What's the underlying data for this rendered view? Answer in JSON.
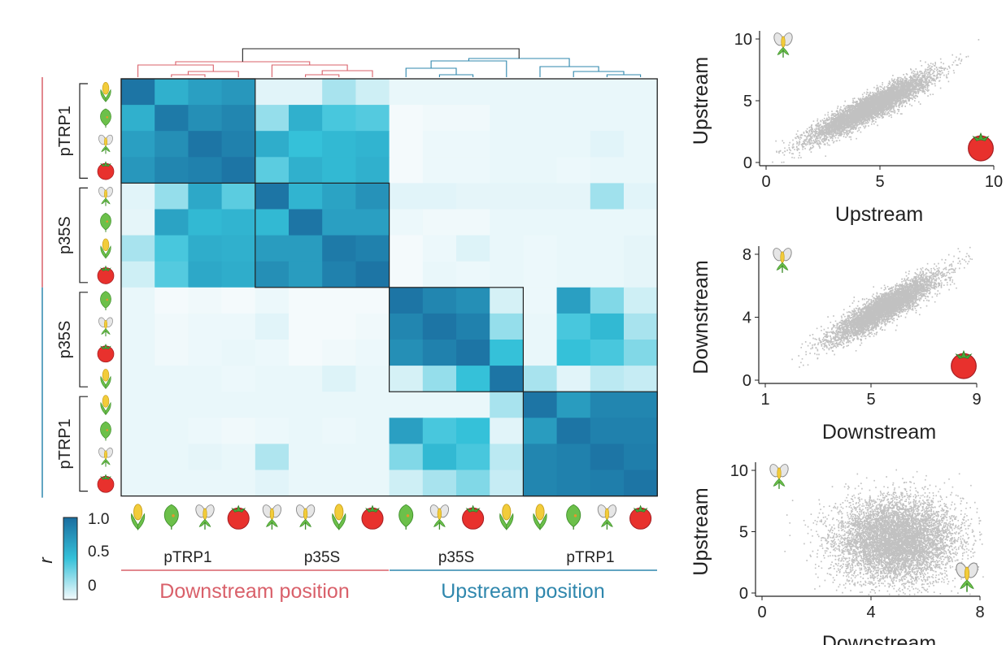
{
  "colors": {
    "downstream": "#d9606a",
    "upstream": "#2f87ad",
    "heat_high": "#1a6d9f",
    "heat_mid": "#35c1d9",
    "heat_low": "#f4fafc",
    "corn_kernel": "#f2cc3a",
    "leaf": "#6cc04a",
    "tomato": "#e8312d",
    "petal": "#d6d6d6",
    "scatter": "#222222"
  },
  "chart_data": [
    {
      "type": "heatmap",
      "title": "",
      "colorbar": {
        "label": "r",
        "ticks": [
          "1.0",
          "0.5",
          "0"
        ],
        "range": [
          0,
          1
        ]
      },
      "row_groups": [
        {
          "label": "pTRP1",
          "position": "Downstream",
          "icons": [
            "corn",
            "leaf",
            "flower",
            "tomato"
          ]
        },
        {
          "label": "p35S",
          "position": "Downstream",
          "icons": [
            "flower",
            "leaf",
            "corn",
            "tomato"
          ]
        },
        {
          "label": "p35S",
          "position": "Upstream",
          "icons": [
            "leaf",
            "flower",
            "tomato",
            "corn"
          ]
        },
        {
          "label": "pTRP1",
          "position": "Upstream",
          "icons": [
            "corn",
            "leaf",
            "flower",
            "tomato"
          ]
        }
      ],
      "col_groups": [
        {
          "label": "pTRP1",
          "icons": [
            "corn",
            "leaf",
            "flower",
            "tomato"
          ]
        },
        {
          "label": "p35S",
          "icons": [
            "flower",
            "flower",
            "corn",
            "tomato"
          ]
        },
        {
          "label": "p35S",
          "icons": [
            "leaf",
            "flower",
            "tomato",
            "corn"
          ]
        },
        {
          "label": "pTRP1",
          "icons": [
            "corn",
            "leaf",
            "flower",
            "tomato"
          ]
        }
      ],
      "position_labels": [
        {
          "label": "Downstream position",
          "color_key": "downstream"
        },
        {
          "label": "Upstream position",
          "color_key": "upstream"
        }
      ],
      "values": [
        [
          0.95,
          0.6,
          0.7,
          0.75,
          0.05,
          0.05,
          0.2,
          0.1,
          0.03,
          0.03,
          0.03,
          0.03,
          0.03,
          0.03,
          0.03,
          0.03
        ],
        [
          0.6,
          0.92,
          0.8,
          0.85,
          0.25,
          0.6,
          0.45,
          0.42,
          0.0,
          0.01,
          0.01,
          0.03,
          0.03,
          0.03,
          0.03,
          0.03
        ],
        [
          0.7,
          0.8,
          0.95,
          0.88,
          0.62,
          0.5,
          0.55,
          0.58,
          0.0,
          0.02,
          0.02,
          0.03,
          0.03,
          0.03,
          0.05,
          0.03
        ],
        [
          0.75,
          0.85,
          0.88,
          0.95,
          0.4,
          0.6,
          0.55,
          0.6,
          0.0,
          0.02,
          0.02,
          0.03,
          0.03,
          0.02,
          0.03,
          0.03
        ],
        [
          0.05,
          0.25,
          0.65,
          0.4,
          0.95,
          0.58,
          0.68,
          0.78,
          0.05,
          0.05,
          0.04,
          0.04,
          0.04,
          0.04,
          0.22,
          0.05
        ],
        [
          0.04,
          0.68,
          0.55,
          0.58,
          0.55,
          0.95,
          0.7,
          0.7,
          0.02,
          0.01,
          0.01,
          0.03,
          0.03,
          0.03,
          0.03,
          0.03
        ],
        [
          0.2,
          0.45,
          0.62,
          0.6,
          0.72,
          0.72,
          0.92,
          0.88,
          0.0,
          0.02,
          0.06,
          0.03,
          0.02,
          0.03,
          0.03,
          0.04
        ],
        [
          0.1,
          0.42,
          0.65,
          0.62,
          0.8,
          0.72,
          0.88,
          0.95,
          0.0,
          0.03,
          0.02,
          0.03,
          0.02,
          0.03,
          0.03,
          0.04
        ],
        [
          0.03,
          0.0,
          0.01,
          0.0,
          0.02,
          0.0,
          0.0,
          0.0,
          0.95,
          0.85,
          0.8,
          0.08,
          0.02,
          0.7,
          0.3,
          0.1
        ],
        [
          0.03,
          0.01,
          0.02,
          0.02,
          0.05,
          0.0,
          0.0,
          0.01,
          0.85,
          0.95,
          0.88,
          0.25,
          0.03,
          0.45,
          0.55,
          0.2
        ],
        [
          0.03,
          0.01,
          0.02,
          0.03,
          0.02,
          0.0,
          0.01,
          0.02,
          0.8,
          0.88,
          0.95,
          0.5,
          0.03,
          0.5,
          0.45,
          0.3
        ],
        [
          0.03,
          0.03,
          0.03,
          0.02,
          0.03,
          0.03,
          0.06,
          0.03,
          0.08,
          0.25,
          0.5,
          0.95,
          0.2,
          0.05,
          0.15,
          0.12
        ],
        [
          0.03,
          0.03,
          0.03,
          0.03,
          0.03,
          0.03,
          0.03,
          0.03,
          0.03,
          0.03,
          0.03,
          0.2,
          0.95,
          0.72,
          0.85,
          0.85
        ],
        [
          0.03,
          0.03,
          0.02,
          0.01,
          0.02,
          0.03,
          0.02,
          0.03,
          0.7,
          0.45,
          0.5,
          0.05,
          0.72,
          0.95,
          0.88,
          0.88
        ],
        [
          0.03,
          0.03,
          0.04,
          0.03,
          0.18,
          0.03,
          0.03,
          0.03,
          0.3,
          0.55,
          0.45,
          0.15,
          0.85,
          0.88,
          0.95,
          0.9
        ],
        [
          0.03,
          0.03,
          0.03,
          0.03,
          0.05,
          0.03,
          0.03,
          0.03,
          0.1,
          0.2,
          0.3,
          0.12,
          0.85,
          0.88,
          0.9,
          0.95
        ]
      ]
    },
    {
      "type": "scatter",
      "xlabel": "Upstream",
      "ylabel": "Upstream",
      "xlim": [
        0,
        10
      ],
      "ylim": [
        0,
        10
      ],
      "xticks": [
        "0",
        "5",
        "10"
      ],
      "yticks": [
        "0",
        "5",
        "10"
      ],
      "corner_icons": {
        "top_left": "flower",
        "bottom_right": "tomato"
      },
      "distribution": {
        "mean_x": 4.6,
        "mean_y": 4.5,
        "sd_x": 1.3,
        "sd_y": 1.3,
        "correlation": 0.92,
        "n": 6000
      }
    },
    {
      "type": "scatter",
      "xlabel": "Downstream",
      "ylabel": "Downstream",
      "xlim": [
        1,
        9
      ],
      "ylim": [
        0,
        8
      ],
      "xticks": [
        "1",
        "5",
        "9"
      ],
      "yticks": [
        "0",
        "4",
        "8"
      ],
      "corner_icons": {
        "top_left": "flower",
        "bottom_right": "tomato"
      },
      "distribution": {
        "mean_x": 5.5,
        "mean_y": 4.6,
        "sd_x": 1.0,
        "sd_y": 1.05,
        "correlation": 0.9,
        "n": 5000
      }
    },
    {
      "type": "scatter",
      "xlabel": "Downstream",
      "ylabel": "Upstream",
      "xlim": [
        0,
        8
      ],
      "ylim": [
        0,
        10
      ],
      "xticks": [
        "0",
        "4",
        "8"
      ],
      "yticks": [
        "0",
        "5",
        "10"
      ],
      "corner_icons": {
        "top_left": "flower",
        "bottom_right": "flower"
      },
      "distribution": {
        "mean_x": 4.9,
        "mean_y": 4.3,
        "sd_x": 1.1,
        "sd_y": 1.7,
        "correlation": 0.05,
        "n": 7000
      }
    }
  ]
}
